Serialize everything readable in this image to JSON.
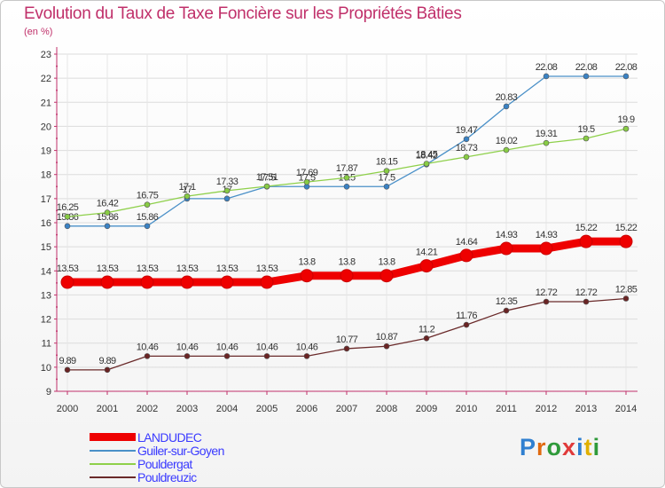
{
  "page": {
    "title": "Evolution du Taux de Taxe Foncière sur les Propriétés Bâties",
    "subtitle": "(en %)"
  },
  "logo": {
    "text": "Proxiti",
    "letter_colors": [
      "#2f7fd0",
      "#e06a10",
      "#2f9a3a",
      "#e03a3a",
      "#2f7fd0",
      "#e0b000",
      "#2f9a3a"
    ]
  },
  "chart_data": {
    "type": "line",
    "title": "Evolution du Taux de Taxe Foncière sur les Propriétés Bâties",
    "ylabel": "(en %)",
    "xlabel": "",
    "ylim": [
      9,
      23
    ],
    "yticks": [
      "9",
      "10",
      "11",
      "12",
      "13",
      "14",
      "15",
      "16",
      "17",
      "18",
      "19",
      "20",
      "21",
      "22",
      "23"
    ],
    "categories": [
      "2000",
      "2001",
      "2002",
      "2003",
      "2004",
      "2005",
      "2006",
      "2007",
      "2008",
      "2009",
      "2010",
      "2011",
      "2012",
      "2013",
      "2014"
    ],
    "grid": true,
    "legend_position": "bottom-left",
    "series": [
      {
        "name": "Guiler-sur-Goyen",
        "color": "#4a90c8",
        "marker_fill": "#3a82c4",
        "style": "thin",
        "values": [
          15.86,
          15.86,
          15.86,
          17,
          17,
          17.5,
          17.5,
          17.5,
          17.5,
          18.42,
          19.47,
          20.83,
          22.08,
          22.08,
          22.08
        ],
        "labels": [
          "15.86",
          "15.86",
          "15.86",
          "17",
          "17",
          "17.5",
          "17.5",
          "17.5",
          "17.5",
          "18.42",
          "19.47",
          "20.83",
          "22.08",
          "22.08",
          "22.08"
        ]
      },
      {
        "name": "Pouldergat",
        "color": "#8ed04a",
        "marker_fill": "#88cc44",
        "style": "thin",
        "values": [
          16.25,
          16.42,
          16.75,
          17.1,
          17.33,
          17.51,
          17.69,
          17.87,
          18.15,
          18.45,
          18.73,
          19.02,
          19.31,
          19.5,
          19.9
        ],
        "labels": [
          "16.25",
          "16.42",
          "16.75",
          "17.1",
          "17.33",
          "17.51",
          "17.69",
          "17.87",
          "18.15",
          "18.45",
          "18.73",
          "19.02",
          "19.31",
          "19.5",
          "19.9"
        ]
      },
      {
        "name": "Pouldreuzic",
        "color": "#6a2a2a",
        "marker_fill": "#6a2424",
        "style": "thin",
        "values": [
          9.89,
          9.89,
          10.46,
          10.46,
          10.46,
          10.46,
          10.46,
          10.77,
          10.87,
          11.2,
          11.76,
          12.35,
          12.72,
          12.72,
          12.85
        ],
        "labels": [
          "9.89",
          "9.89",
          "10.46",
          "10.46",
          "10.46",
          "10.46",
          "10.46",
          "10.77",
          "10.87",
          "11.2",
          "11.76",
          "12.35",
          "12.72",
          "12.72",
          "12.85"
        ]
      },
      {
        "name": "LANDUDEC",
        "color": "#ee0000",
        "marker_fill": "#ee0000",
        "style": "thick",
        "values": [
          13.53,
          13.53,
          13.53,
          13.53,
          13.53,
          13.53,
          13.8,
          13.8,
          13.8,
          14.21,
          14.64,
          14.93,
          14.93,
          15.22,
          15.22
        ],
        "labels": [
          "13.53",
          "13.53",
          "13.53",
          "13.53",
          "13.53",
          "13.53",
          "13.8",
          "13.8",
          "13.8",
          "14.21",
          "14.64",
          "14.93",
          "14.93",
          "15.22",
          "15.22"
        ]
      }
    ],
    "legend": [
      {
        "name": "LANDUDEC",
        "color": "#ee0000",
        "style": "thick"
      },
      {
        "name": "Guiler-sur-Goyen",
        "color": "#4a90c8",
        "style": "thin"
      },
      {
        "name": "Pouldergat",
        "color": "#8ed04a",
        "style": "thin"
      },
      {
        "name": "Pouldreuzic",
        "color": "#6a2a2a",
        "style": "thin"
      }
    ]
  }
}
